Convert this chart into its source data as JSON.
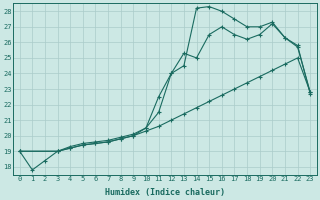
{
  "xlabel": "Humidex (Indice chaleur)",
  "bg_color": "#cce8e4",
  "grid_color": "#aaccca",
  "line_color": "#1a6b60",
  "xlim": [
    -0.5,
    23.5
  ],
  "ylim": [
    17.5,
    28.5
  ],
  "yticks": [
    18,
    19,
    20,
    21,
    22,
    23,
    24,
    25,
    26,
    27,
    28
  ],
  "xticks": [
    0,
    1,
    2,
    3,
    4,
    5,
    6,
    7,
    8,
    9,
    10,
    11,
    12,
    13,
    14,
    15,
    16,
    17,
    18,
    19,
    20,
    21,
    22,
    23
  ],
  "line1_x": [
    0,
    1,
    2,
    3,
    4,
    5,
    6,
    7,
    8,
    9,
    10,
    11,
    12,
    13,
    14,
    15,
    16,
    17,
    18,
    19,
    20,
    21,
    22,
    23
  ],
  "line1_y": [
    19.0,
    17.8,
    18.4,
    19.0,
    19.2,
    19.4,
    19.5,
    19.6,
    19.8,
    20.0,
    20.3,
    20.6,
    21.0,
    21.4,
    21.8,
    22.2,
    22.6,
    23.0,
    23.4,
    23.8,
    24.2,
    24.6,
    25.0,
    22.8
  ],
  "line2_x": [
    0,
    3,
    4,
    5,
    6,
    7,
    8,
    9,
    10,
    11,
    12,
    13,
    14,
    15,
    16,
    17,
    18,
    19,
    20,
    21,
    22,
    23
  ],
  "line2_y": [
    19.0,
    19.0,
    19.2,
    19.4,
    19.5,
    19.6,
    19.8,
    20.0,
    20.5,
    21.5,
    24.0,
    25.3,
    25.0,
    26.5,
    27.0,
    26.5,
    26.2,
    26.5,
    27.2,
    26.3,
    25.7,
    22.8
  ],
  "line3_x": [
    0,
    3,
    4,
    5,
    6,
    7,
    8,
    9,
    10,
    11,
    12,
    13,
    14,
    15,
    16,
    17,
    18,
    19,
    20,
    21,
    22,
    23
  ],
  "line3_y": [
    19.0,
    19.0,
    19.3,
    19.5,
    19.6,
    19.7,
    19.9,
    20.1,
    20.5,
    22.5,
    24.0,
    24.5,
    28.2,
    28.3,
    28.0,
    27.5,
    27.0,
    27.0,
    27.3,
    26.3,
    25.8,
    22.7
  ]
}
